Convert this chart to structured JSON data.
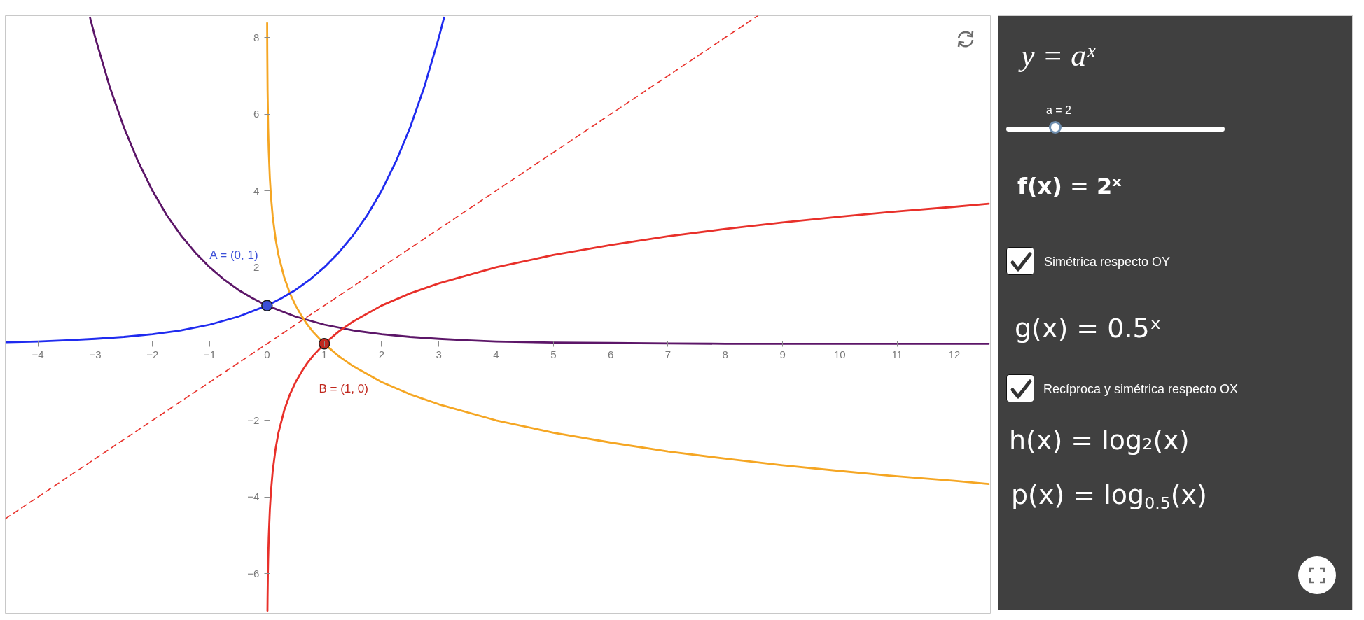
{
  "chart_data": [
    {
      "type": "line",
      "xlim": [
        -4.57,
        12.63
      ],
      "ylim": [
        -7.04,
        8.57
      ],
      "xticks": [
        {
          "value": -4,
          "label": "−4"
        },
        {
          "value": -3,
          "label": "−3"
        },
        {
          "value": -2,
          "label": "−2"
        },
        {
          "value": -1,
          "label": "−1"
        },
        0,
        1,
        2,
        3,
        4,
        5,
        6,
        7,
        8,
        9,
        10,
        11,
        12
      ],
      "yticks": [
        {
          "value": -6,
          "label": "−6"
        },
        {
          "value": -4,
          "label": "−4"
        },
        {
          "value": -2,
          "label": "−2"
        },
        2,
        4,
        6,
        8
      ],
      "series": [
        {
          "color": "#e8302a",
          "line_style": "dashed",
          "x": [
            -4.57,
            8.57
          ],
          "values": [
            -4.57,
            8.57
          ]
        },
        {
          "color": "#5c1668",
          "x": [
            -3.09,
            -3,
            -2.75,
            -2.5,
            -2.25,
            -2,
            -1.75,
            -1.5,
            -1.25,
            -1,
            -0.75,
            -0.5,
            -0.25,
            0,
            0.5,
            1,
            1.5,
            2,
            2.5,
            3,
            3.5,
            4,
            5,
            6,
            7,
            8,
            10,
            12.6
          ],
          "values": [
            8.52,
            8,
            6.73,
            5.66,
            4.76,
            4,
            3.36,
            2.83,
            2.38,
            2,
            1.68,
            1.41,
            1.19,
            1,
            0.71,
            0.5,
            0.35,
            0.25,
            0.18,
            0.13,
            0.09,
            0.06,
            0.03,
            0.02,
            0.01,
            0,
            0,
            0
          ]
        },
        {
          "color": "#f5a623",
          "x": [
            0.003,
            0.005,
            0.01,
            0.02,
            0.03,
            0.05,
            0.07,
            0.1,
            0.15,
            0.2,
            0.3,
            0.4,
            0.5,
            0.6,
            0.7,
            0.8,
            1,
            1.25,
            1.5,
            2,
            2.5,
            3,
            4,
            5,
            6,
            7,
            8,
            9,
            10,
            11,
            12,
            12.6
          ],
          "values": [
            8.38,
            7.64,
            6.64,
            5.64,
            5.06,
            4.32,
            3.84,
            3.32,
            2.74,
            2.32,
            1.74,
            1.32,
            1,
            0.74,
            0.51,
            0.32,
            0,
            -0.32,
            -0.58,
            -1,
            -1.32,
            -1.58,
            -2,
            -2.32,
            -2.58,
            -2.81,
            -3,
            -3.17,
            -3.32,
            -3.46,
            -3.58,
            -3.66
          ]
        },
        {
          "color": "#e8302a",
          "x": [
            0.008,
            0.01,
            0.015,
            0.02,
            0.03,
            0.05,
            0.07,
            0.1,
            0.15,
            0.2,
            0.3,
            0.4,
            0.5,
            0.6,
            0.7,
            0.8,
            1,
            1.25,
            1.5,
            2,
            2.5,
            3,
            4,
            5,
            6,
            7,
            8,
            9,
            10,
            11,
            12,
            12.6
          ],
          "values": [
            -6.97,
            -6.64,
            -6.06,
            -5.64,
            -5.06,
            -4.32,
            -3.84,
            -3.32,
            -2.74,
            -2.32,
            -1.74,
            -1.32,
            -1,
            -0.74,
            -0.51,
            -0.32,
            0,
            0.32,
            0.58,
            1,
            1.32,
            1.58,
            2,
            2.32,
            2.58,
            2.81,
            3,
            3.17,
            3.32,
            3.46,
            3.58,
            3.66
          ]
        },
        {
          "color": "#1f2bef",
          "x": [
            -4.55,
            -4,
            -3.5,
            -3,
            -2.5,
            -2,
            -1.5,
            -1,
            -0.5,
            0,
            0.25,
            0.5,
            0.75,
            1,
            1.25,
            1.5,
            1.75,
            2,
            2.25,
            2.5,
            2.75,
            3,
            3.09
          ],
          "values": [
            0.04,
            0.06,
            0.09,
            0.13,
            0.18,
            0.25,
            0.35,
            0.5,
            0.71,
            1,
            1.19,
            1.41,
            1.68,
            2,
            2.38,
            2.83,
            3.36,
            4,
            4.76,
            5.66,
            6.73,
            8,
            8.52
          ]
        },
        {
          "type": "scatter",
          "marker": "circle",
          "color": "#3b4fd8",
          "x": [
            0
          ],
          "values": [
            1
          ]
        },
        {
          "type": "scatter",
          "marker": "circle",
          "color": "#c0281e",
          "x": [
            1
          ],
          "values": [
            0
          ]
        }
      ],
      "annotations": [
        "A = (0, 1)",
        "B = (1, 0)"
      ]
    },
    {
      "type": "other",
      "annotations": [
        "y = aˣ",
        "a = 2",
        "f(x) = 2ˣ",
        "Simétrica respecto OY",
        "g(x) = 0.5ˣ",
        "Recíproca y simétrica respecto OX",
        "h(x) = log₂(x)",
        "p(x) = log$_{0.5}$(x)"
      ]
    }
  ]
}
